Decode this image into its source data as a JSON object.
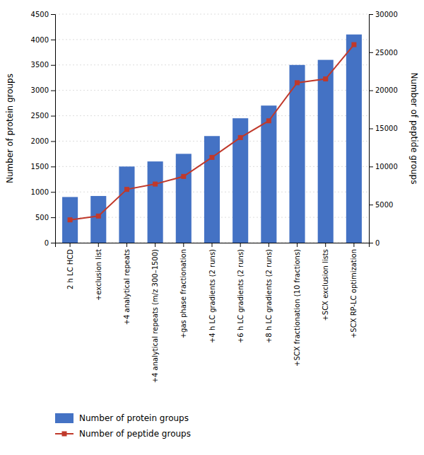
{
  "chart_data": {
    "type": "bar",
    "categories": [
      "2 h LC HCD",
      "+exclusion list",
      "+4 analytical repeats",
      "+4 analytical repeats (m/z 300–1500)",
      "+gas phase fractionation",
      "+4 h LC gradients (2 runs)",
      "+6 h LC gradients (2 runs)",
      "+8 h LC gradients (2 runs)",
      "+SCX fractionation (10 fractions)",
      "+SCX exclusion lists",
      "+SCX RP-LC optimization"
    ],
    "series": [
      {
        "name": "Number of protein groups",
        "type": "bar",
        "color": "#4472C4",
        "values": [
          900,
          920,
          1500,
          1600,
          1750,
          2100,
          2450,
          2700,
          3500,
          3600,
          4100
        ]
      },
      {
        "name": "Number of peptide groups",
        "type": "line",
        "color": "#C0392B",
        "marker": "square",
        "axis": "y2",
        "values": [
          3000,
          3500,
          7000,
          7700,
          8700,
          11200,
          13800,
          16000,
          21000,
          21500,
          26000
        ]
      }
    ],
    "ylabel": "Number of protein groups",
    "y2label": "Number of peptide groups",
    "ylim": [
      0,
      4500
    ],
    "yticks": [
      0,
      500,
      1000,
      1500,
      2000,
      2500,
      3000,
      3500,
      4000,
      4500
    ],
    "y2lim": [
      0,
      30000
    ],
    "y2ticks": [
      0,
      5000,
      10000,
      15000,
      20000,
      25000,
      30000
    ],
    "grid": true,
    "legend": "bottom"
  }
}
